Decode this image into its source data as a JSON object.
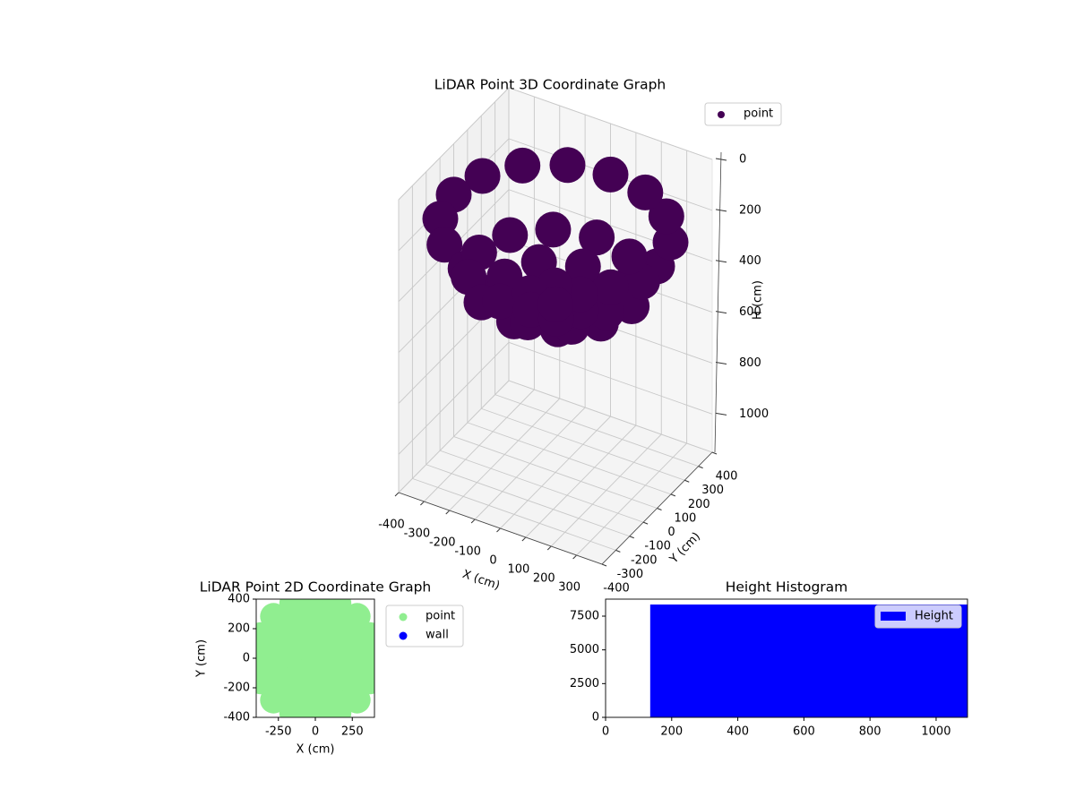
{
  "chart_data": [
    {
      "type": "scatter3d",
      "title": "LiDAR Point 3D Coordinate Graph",
      "xlabel": "X (cm)",
      "ylabel": "Y (cm)",
      "zlabel": "H (cm)",
      "xlim": [
        -400,
        400
      ],
      "ylim": [
        -400,
        400
      ],
      "zlim": [
        0,
        1150
      ],
      "zinverted": true,
      "xticks": [
        -400,
        -300,
        -200,
        -100,
        0,
        100,
        200,
        300
      ],
      "yticks": [
        -400,
        -300,
        -200,
        -100,
        0,
        100,
        200,
        300,
        400
      ],
      "zticks": [
        0,
        200,
        400,
        600,
        800,
        1000
      ],
      "grid": true,
      "legend": "upper right",
      "series": [
        {
          "name": "point",
          "color": "#440154",
          "x": [
            400,
            370,
            283,
            153,
            0,
            -153,
            -283,
            -370,
            -400,
            -370,
            -283,
            -153,
            0,
            153,
            283,
            370,
            300,
            260,
            150,
            0,
            -150,
            -260,
            -300,
            -260,
            -150,
            0,
            150,
            260,
            200,
            141,
            0,
            -141,
            -200,
            -141,
            0,
            141,
            100,
            50,
            -50,
            -100,
            -50,
            50,
            0
          ],
          "y": [
            0,
            153,
            283,
            370,
            400,
            370,
            283,
            153,
            0,
            -153,
            -283,
            -370,
            -400,
            -370,
            -283,
            -153,
            0,
            150,
            260,
            300,
            260,
            150,
            0,
            -150,
            -260,
            -300,
            -260,
            -150,
            0,
            141,
            200,
            141,
            0,
            -141,
            -200,
            -141,
            0,
            87,
            87,
            0,
            -87,
            -87,
            0
          ],
          "z": [
            200,
            200,
            200,
            200,
            200,
            200,
            200,
            200,
            200,
            200,
            200,
            200,
            200,
            200,
            200,
            200,
            392,
            392,
            392,
            392,
            392,
            392,
            392,
            392,
            392,
            392,
            392,
            392,
            451,
            451,
            451,
            451,
            451,
            451,
            451,
            451,
            481,
            481,
            481,
            481,
            481,
            481,
            490
          ]
        }
      ]
    },
    {
      "type": "scatter",
      "title": "LiDAR Point 2D Coordinate Graph",
      "xlabel": "X (cm)",
      "ylabel": "Y (cm)",
      "xlim": [
        -400,
        400
      ],
      "ylim": [
        -400,
        400
      ],
      "xticks": [
        -250,
        0,
        250
      ],
      "yticks": [
        -400,
        -200,
        0,
        200,
        400
      ],
      "legend": "outside right",
      "series": [
        {
          "name": "point",
          "color": "#90ee90",
          "x": [
            400,
            370,
            283,
            153,
            0,
            -153,
            -283,
            -370,
            -400,
            -370,
            -283,
            -153,
            0,
            153,
            283,
            370,
            300,
            260,
            150,
            0,
            -150,
            -260,
            -300,
            -260,
            -150,
            0,
            150,
            260,
            200,
            141,
            0,
            -141,
            -200,
            -141,
            0,
            141,
            100,
            50,
            -50,
            -100,
            -50,
            50,
            0
          ],
          "y": [
            0,
            153,
            283,
            370,
            400,
            370,
            283,
            153,
            0,
            -153,
            -283,
            -370,
            -400,
            -370,
            -283,
            -153,
            0,
            150,
            260,
            300,
            260,
            150,
            0,
            -150,
            -260,
            -300,
            -260,
            -150,
            0,
            141,
            200,
            141,
            0,
            -141,
            -200,
            -141,
            0,
            87,
            87,
            0,
            -87,
            -87,
            0
          ]
        },
        {
          "name": "wall",
          "color": "#0000ff",
          "x": [],
          "y": []
        }
      ]
    },
    {
      "type": "histogram",
      "title": "Height Histogram",
      "xlim": [
        0,
        1095
      ],
      "ylim": [
        0,
        8760
      ],
      "xticks": [
        0,
        200,
        400,
        600,
        800,
        1000
      ],
      "yticks": [
        0,
        2500,
        5000,
        7500
      ],
      "legend": "upper right",
      "series": [
        {
          "name": "Height",
          "color": "#0000ff",
          "bins": [
            135,
            1095
          ],
          "values": [
            8360
          ]
        }
      ]
    }
  ]
}
